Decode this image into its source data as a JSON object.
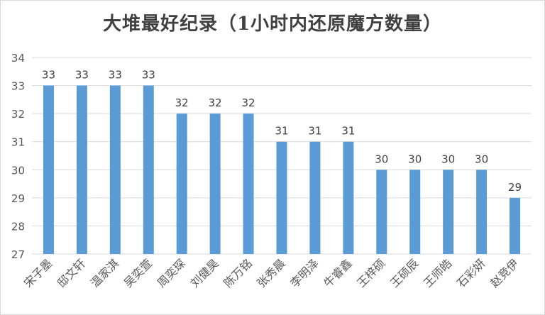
{
  "chart_data": {
    "type": "bar",
    "title": "大堆最好纪录（1小时内还原魔方数量）",
    "xlabel": "",
    "ylabel": "",
    "ylim": [
      27,
      34
    ],
    "yticks": [
      27,
      28,
      29,
      30,
      31,
      32,
      33,
      34
    ],
    "grid": true,
    "legend": "none",
    "categories": [
      "宋子墨",
      "邸文轩",
      "温家淇",
      "吴奕萱",
      "周奕琛",
      "刘健昊",
      "陈万铭",
      "张秀晨",
      "李明泽",
      "牛睿鑫",
      "王梓硕",
      "王硕辰",
      "王师皓",
      "石彩妍",
      "赵竞伊"
    ],
    "values": [
      33,
      33,
      33,
      33,
      32,
      32,
      32,
      31,
      31,
      31,
      30,
      30,
      30,
      30,
      29
    ],
    "colors": {
      "bar": "#5b9bd5",
      "grid": "#d9d9d9",
      "text": "#595959",
      "title": "#404040",
      "label": "#404040"
    }
  }
}
